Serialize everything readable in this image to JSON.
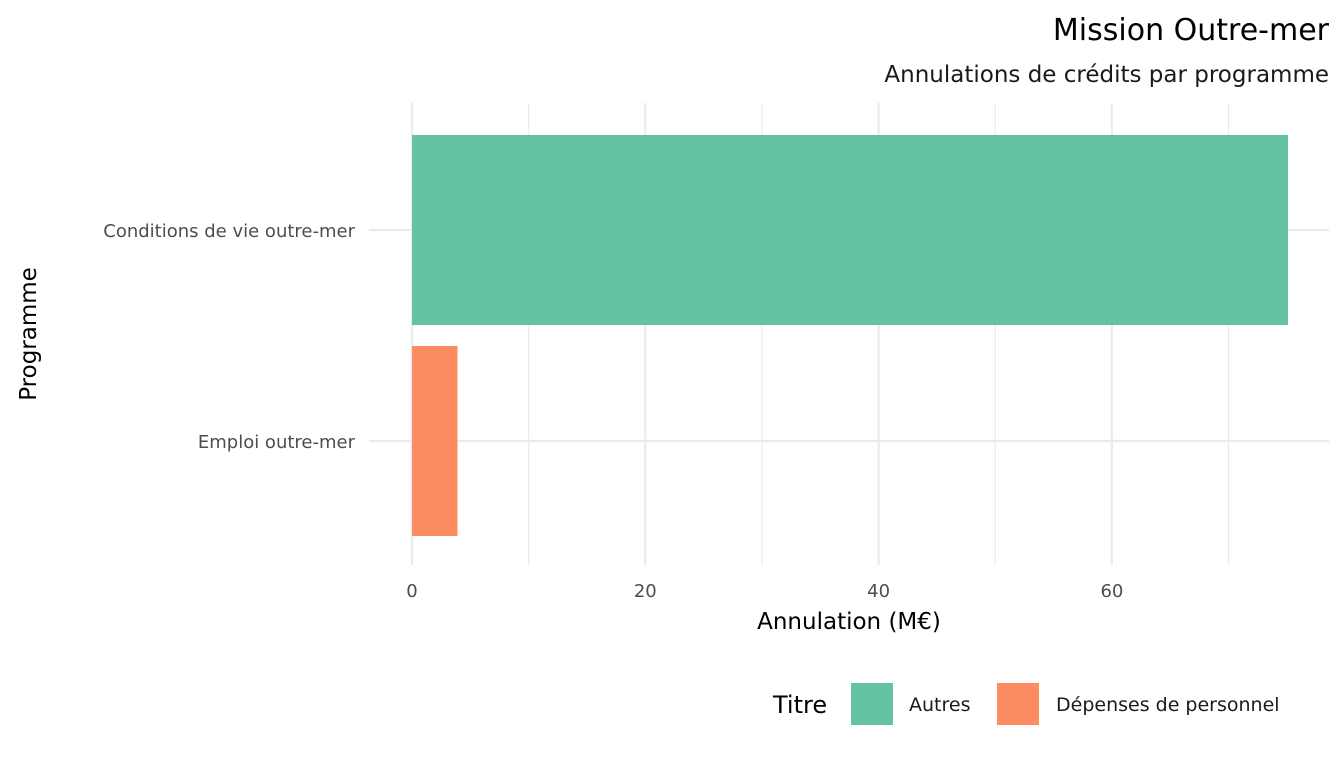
{
  "chart_data": {
    "type": "bar",
    "orientation": "horizontal",
    "title": "Mission Outre-mer",
    "subtitle": "Annulations de crédits par programme",
    "xlabel": "Annulation (M€)",
    "ylabel": "Programme",
    "xlim": [
      0,
      78.6
    ],
    "x_ticks": [
      0,
      20,
      40,
      60
    ],
    "grid": true,
    "legend_position": "bottom-right",
    "legend": {
      "title": "Titre",
      "entries": [
        {
          "label": "Autres",
          "color": "#66c2a5"
        },
        {
          "label": "Dépenses de personnel",
          "color": "#fc8d62"
        }
      ]
    },
    "bars": [
      {
        "category": "Conditions de vie outre-mer",
        "value": 75.1,
        "titre": "Autres",
        "color": "#66c2a5"
      },
      {
        "category": "Emploi outre-mer",
        "value": 3.9,
        "titre": "Dépenses de personnel",
        "color": "#fc8d62"
      }
    ]
  }
}
